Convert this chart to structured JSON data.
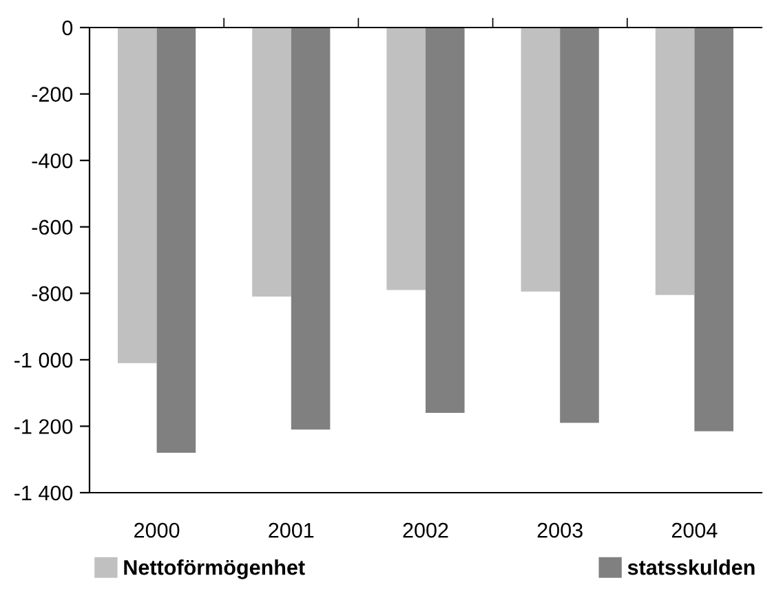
{
  "chart_data": {
    "type": "bar",
    "categories": [
      "2000",
      "2001",
      "2002",
      "2003",
      "2004"
    ],
    "series": [
      {
        "name": "Nettoförmögenhet",
        "color": "#c0c0c0",
        "values": [
          -1010,
          -810,
          -790,
          -795,
          -805
        ]
      },
      {
        "name": "statsskulden",
        "color": "#808080",
        "values": [
          -1280,
          -1210,
          -1160,
          -1190,
          -1215
        ]
      }
    ],
    "ylim": [
      -1400,
      0
    ],
    "yticks": [
      {
        "value": -1400,
        "label": "-1 400"
      },
      {
        "value": -1200,
        "label": "-1 200"
      },
      {
        "value": -1000,
        "label": "-1 000"
      },
      -800,
      -600,
      -400,
      -200,
      0
    ],
    "grid": false,
    "legend": "bottom"
  }
}
